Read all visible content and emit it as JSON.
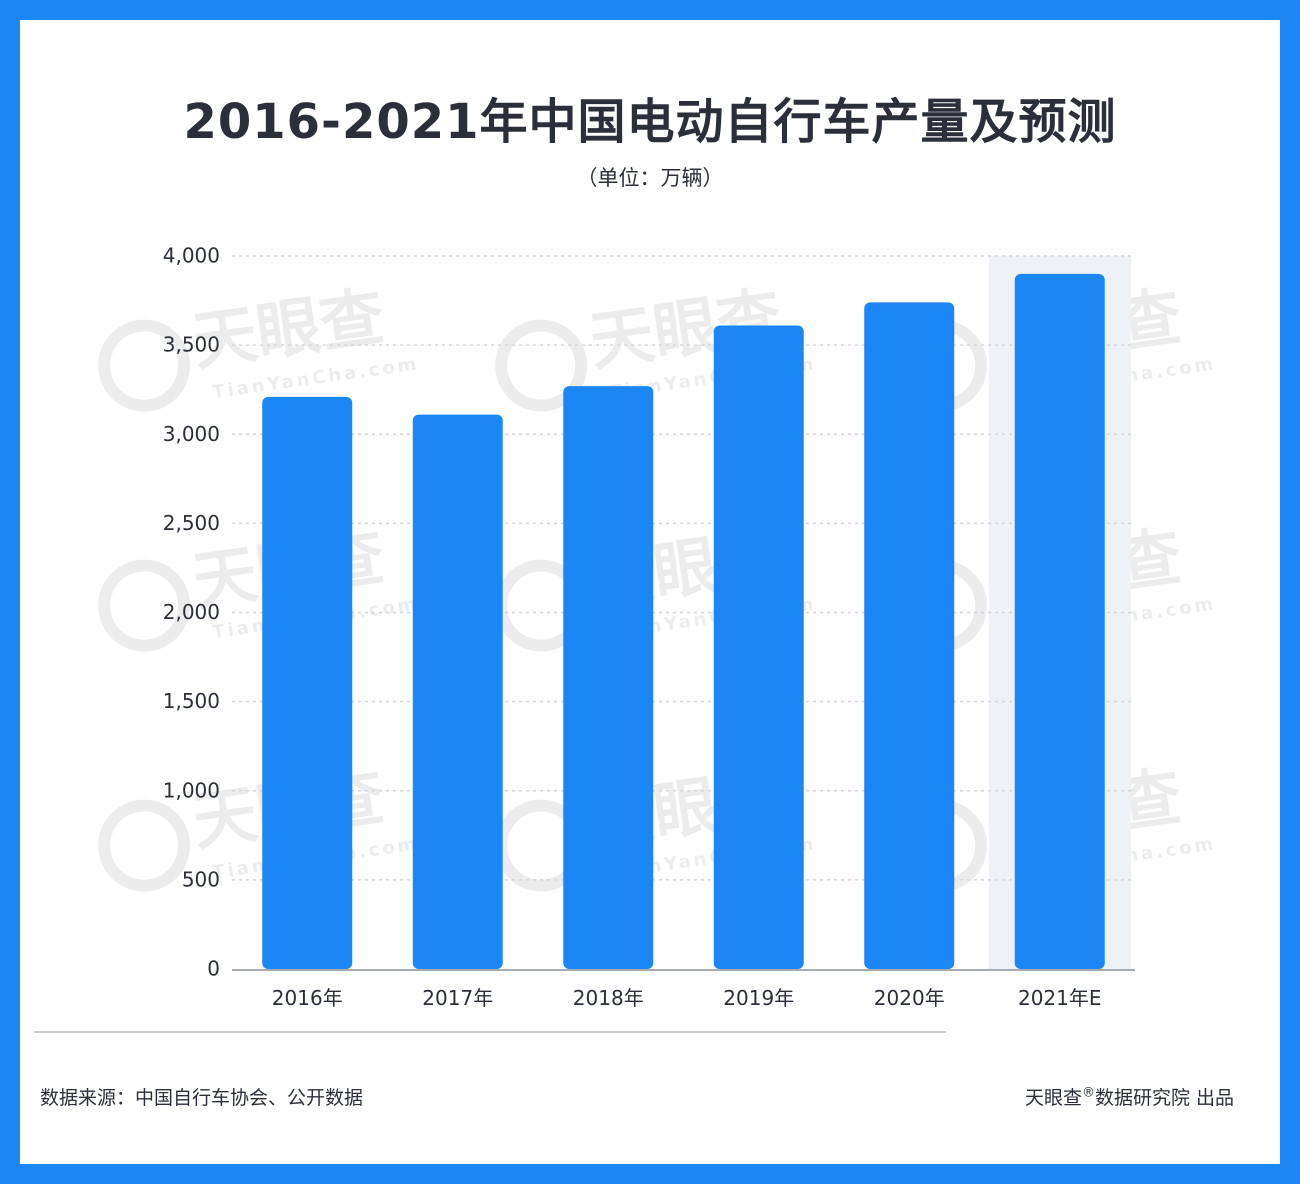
{
  "header": {
    "title": "2016-2021年中国电动自行车产量及预测",
    "subtitle": "（单位：万辆）"
  },
  "footer": {
    "source": "数据来源：中国自行车协会、公开数据",
    "producer_brand": "天眼查",
    "producer_mark": "®",
    "producer_rest": "数据研究院 出品"
  },
  "watermark": {
    "brand": "天眼查",
    "domain": "TianYanCha.com"
  },
  "colors": {
    "frame": "#1a87f5",
    "bar": "#1a87f5",
    "highlight_band": "#eef1f7",
    "grid": "#d3d6dc",
    "text": "#2b2f3a"
  },
  "chart_data": {
    "type": "bar",
    "title": "2016-2021年中国电动自行车产量及预测",
    "subtitle": "（单位：万辆）",
    "categories": [
      "2016年",
      "2017年",
      "2018年",
      "2019年",
      "2020年",
      "2021年E"
    ],
    "values": [
      3210,
      3110,
      3270,
      3610,
      3740,
      3900
    ],
    "ylim": [
      0,
      4000
    ],
    "yticks": [
      0,
      500,
      1000,
      1500,
      2000,
      2500,
      3000,
      3500,
      4000
    ],
    "ytick_labels": [
      "0",
      "500",
      "1,000",
      "1,500",
      "2,000",
      "2,500",
      "3,000",
      "3,500",
      "4,000"
    ],
    "highlight_category": "2021年E",
    "grid": "horizontal dotted",
    "legend": "none"
  }
}
